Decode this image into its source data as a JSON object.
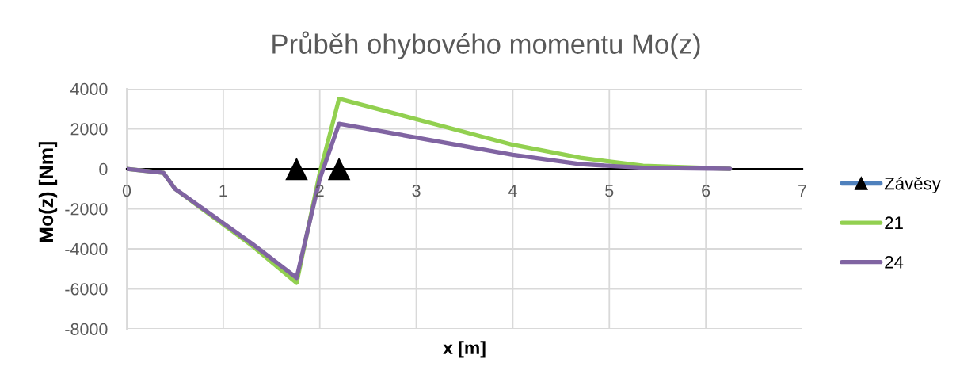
{
  "chart_data": {
    "type": "line",
    "title": "Průběh ohybového momentu Mo(z)",
    "xlabel": "x [m]",
    "ylabel": "Mo(z) [Nm]",
    "xlim": [
      0,
      7
    ],
    "xticks": [
      0,
      1,
      2,
      3,
      4,
      5,
      6,
      7
    ],
    "ylim": [
      -8000,
      4000
    ],
    "yticks": [
      -8000,
      -6000,
      -4000,
      -2000,
      0,
      2000,
      4000
    ],
    "grid": true,
    "legend": "right",
    "line_style": "solid",
    "marker": "none",
    "series": [
      {
        "name": "Závěsy",
        "type": "scatter",
        "marker": "triangle",
        "color": "#4f81bd",
        "colors": [
          "#000000",
          "#000000"
        ],
        "x": [
          1.76,
          2.2
        ],
        "values": [
          0,
          0
        ]
      },
      {
        "name": "21",
        "color": "#92d050",
        "x": [
          0,
          0.38,
          0.5,
          1.3,
          1.76,
          2,
          2.2,
          4,
          4.7,
          5.35,
          6.25
        ],
        "values": [
          0,
          -200,
          -1000,
          -3850,
          -5700,
          -200,
          3500,
          1200,
          550,
          150,
          0
        ]
      },
      {
        "name": "24",
        "color": "#8064a2",
        "x": [
          0,
          0.38,
          0.5,
          1.3,
          1.76,
          2,
          2.2,
          4,
          4.7,
          5.35,
          6.25
        ],
        "values": [
          0,
          -200,
          -1000,
          -3750,
          -5450,
          -500,
          2250,
          700,
          230,
          50,
          0
        ]
      }
    ]
  }
}
